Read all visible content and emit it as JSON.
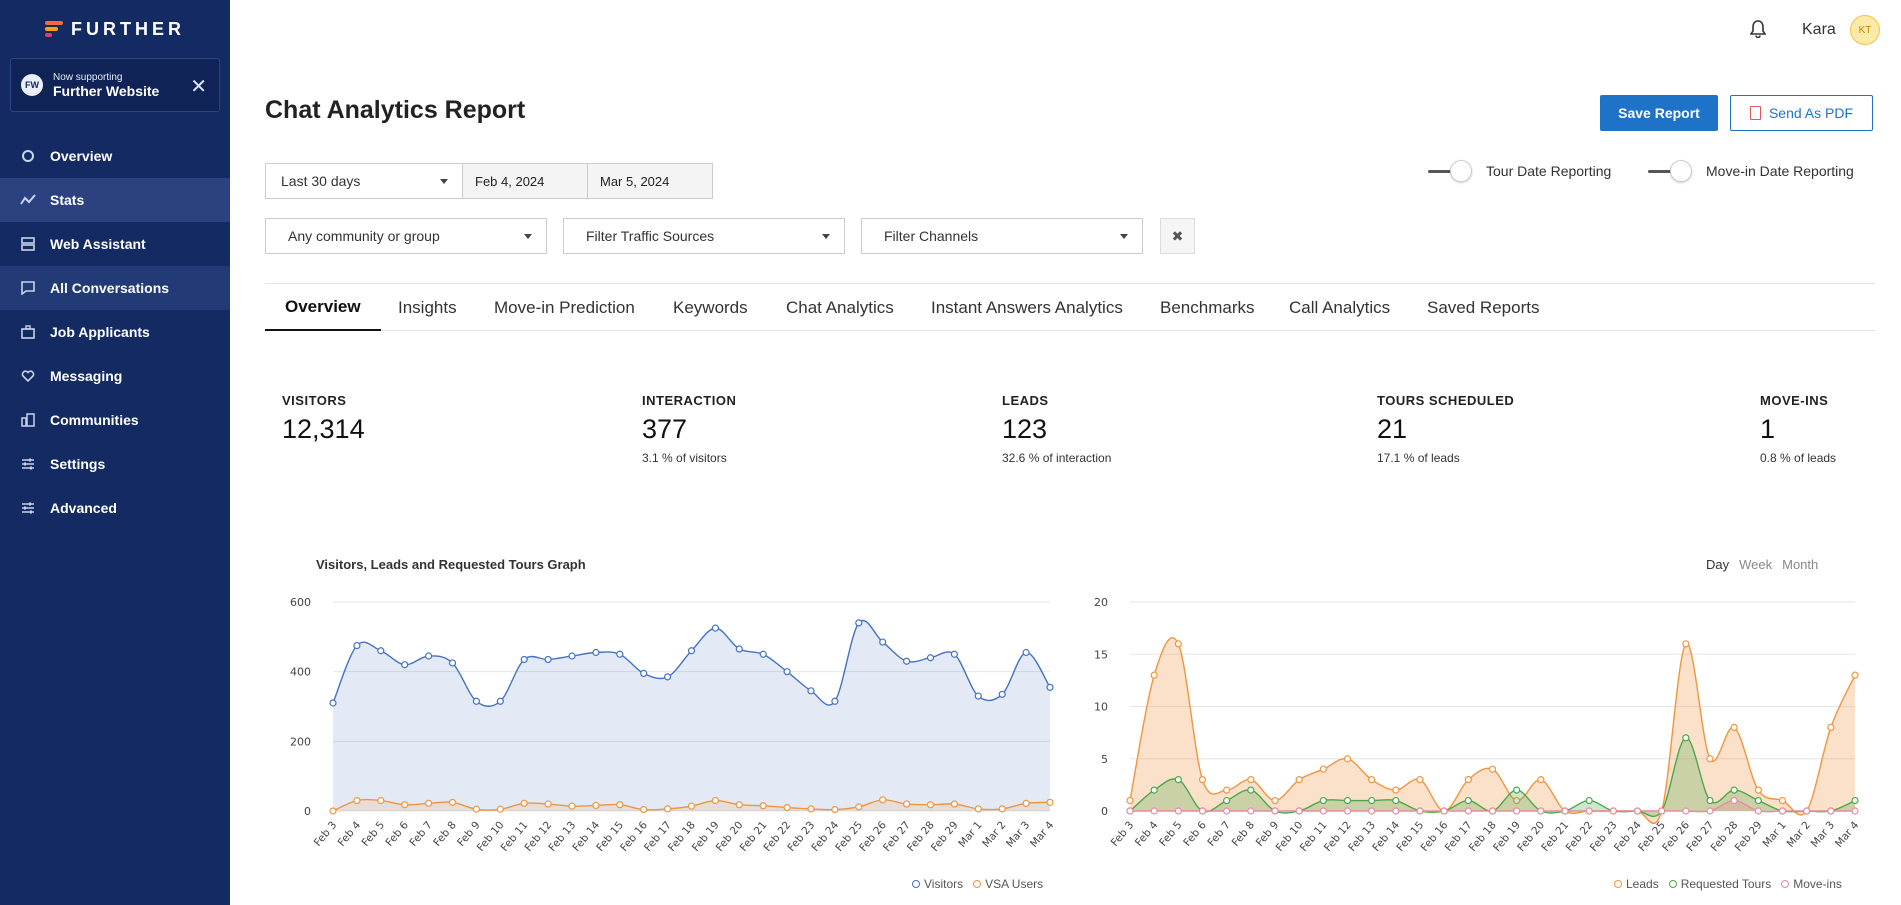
{
  "brand": {
    "name": "FURTHER"
  },
  "support": {
    "small": "Now supporting",
    "big": "Further Website",
    "avatar": "FW"
  },
  "nav": [
    {
      "label": "Overview",
      "icon": "circle-icon"
    },
    {
      "label": "Stats",
      "icon": "stats-icon"
    },
    {
      "label": "Web Assistant",
      "icon": "stack-icon"
    },
    {
      "label": "All Conversations",
      "icon": "chat-icon"
    },
    {
      "label": "Job Applicants",
      "icon": "briefcase-icon"
    },
    {
      "label": "Messaging",
      "icon": "heart-icon"
    },
    {
      "label": "Communities",
      "icon": "building-icon"
    },
    {
      "label": "Settings",
      "icon": "sliders-icon"
    },
    {
      "label": "Advanced",
      "icon": "sliders-icon"
    }
  ],
  "user": {
    "name": "Kara",
    "initials": "KT"
  },
  "page": {
    "title": "Chat Analytics Report"
  },
  "actions": {
    "save": "Save Report",
    "pdf": "Send As PDF"
  },
  "filters": {
    "range": "Last 30 days",
    "start": "Feb 4, 2024",
    "end": "Mar 5, 2024",
    "community": "Any community or group",
    "traffic": "Filter Traffic Sources",
    "channels": "Filter Channels",
    "clear": "✖"
  },
  "toggles": {
    "tour": "Tour Date Reporting",
    "movein": "Move-in Date Reporting"
  },
  "tabs": [
    "Overview",
    "Insights",
    "Move-in Prediction",
    "Keywords",
    "Chat Analytics",
    "Instant Answers Analytics",
    "Benchmarks",
    "Call Analytics",
    "Saved Reports"
  ],
  "metrics": [
    {
      "label": "VISITORS",
      "value": "12,314",
      "sub": ""
    },
    {
      "label": "INTERACTION",
      "value": "377",
      "sub": "3.1 % of visitors"
    },
    {
      "label": "LEADS",
      "value": "123",
      "sub": "32.6 % of interaction"
    },
    {
      "label": "TOURS SCHEDULED",
      "value": "21",
      "sub": "17.1 % of leads"
    },
    {
      "label": "MOVE-INS",
      "value": "1",
      "sub": "0.8 % of leads"
    }
  ],
  "range_picker": [
    "Day",
    "Week",
    "Month"
  ],
  "colors": {
    "blue": "#4472c4",
    "orange": "#f0953f",
    "green": "#4aa84a",
    "pink": "#e88aa0"
  },
  "chart_data": [
    {
      "type": "area",
      "title": "Visitors, Leads and Requested Tours Graph",
      "categories": [
        "Feb 3",
        "Feb 4",
        "Feb 5",
        "Feb 6",
        "Feb 7",
        "Feb 8",
        "Feb 9",
        "Feb 10",
        "Feb 11",
        "Feb 12",
        "Feb 13",
        "Feb 14",
        "Feb 15",
        "Feb 16",
        "Feb 17",
        "Feb 18",
        "Feb 19",
        "Feb 20",
        "Feb 21",
        "Feb 22",
        "Feb 23",
        "Feb 24",
        "Feb 25",
        "Feb 26",
        "Feb 27",
        "Feb 28",
        "Feb 29",
        "Mar 1",
        "Mar 2",
        "Mar 3",
        "Mar 4"
      ],
      "ylim": [
        0,
        600
      ],
      "yticks": [
        0,
        200,
        400,
        600
      ],
      "series": [
        {
          "name": "Visitors",
          "color": "#4472c4",
          "values": [
            310,
            475,
            460,
            420,
            445,
            425,
            315,
            315,
            435,
            435,
            445,
            455,
            450,
            395,
            385,
            460,
            525,
            465,
            450,
            400,
            345,
            315,
            540,
            485,
            430,
            440,
            450,
            330,
            335,
            455,
            355
          ]
        },
        {
          "name": "VSA Users",
          "color": "#f0953f",
          "values": [
            0,
            30,
            30,
            18,
            22,
            25,
            5,
            5,
            22,
            20,
            14,
            16,
            18,
            4,
            6,
            14,
            30,
            18,
            15,
            10,
            6,
            4,
            12,
            32,
            20,
            18,
            20,
            6,
            6,
            22,
            25
          ]
        }
      ]
    },
    {
      "type": "area",
      "title": "",
      "categories": [
        "Feb 3",
        "Feb 4",
        "Feb 5",
        "Feb 6",
        "Feb 7",
        "Feb 8",
        "Feb 9",
        "Feb 10",
        "Feb 11",
        "Feb 12",
        "Feb 13",
        "Feb 14",
        "Feb 15",
        "Feb 16",
        "Feb 17",
        "Feb 18",
        "Feb 19",
        "Feb 20",
        "Feb 21",
        "Feb 22",
        "Feb 23",
        "Feb 24",
        "Feb 25",
        "Feb 26",
        "Feb 27",
        "Feb 28",
        "Feb 29",
        "Mar 1",
        "Mar 2",
        "Mar 3",
        "Mar 4"
      ],
      "ylim": [
        0,
        20
      ],
      "yticks": [
        0,
        5,
        10,
        15,
        20
      ],
      "series": [
        {
          "name": "Leads",
          "color": "#f0953f",
          "values": [
            1,
            13,
            16,
            3,
            2,
            3,
            1,
            3,
            4,
            5,
            3,
            2,
            3,
            0,
            3,
            4,
            1,
            3,
            0,
            0,
            0,
            0,
            0,
            16,
            5,
            8,
            2,
            1,
            0,
            8,
            13
          ]
        },
        {
          "name": "Requested Tours",
          "color": "#4aa84a",
          "values": [
            0,
            2,
            3,
            0,
            1,
            2,
            0,
            0,
            1,
            1,
            1,
            1,
            0,
            0,
            1,
            0,
            2,
            0,
            0,
            1,
            0,
            0,
            0,
            7,
            1,
            2,
            1,
            0,
            0,
            0,
            1
          ]
        },
        {
          "name": "Move-ins",
          "color": "#e88aa0",
          "values": [
            0,
            0,
            0,
            0,
            0,
            0,
            0,
            0,
            0,
            0,
            0,
            0,
            0,
            0,
            0,
            0,
            0,
            0,
            0,
            0,
            0,
            0,
            0,
            0,
            0,
            1,
            0,
            0,
            0,
            0,
            0
          ]
        }
      ]
    }
  ]
}
